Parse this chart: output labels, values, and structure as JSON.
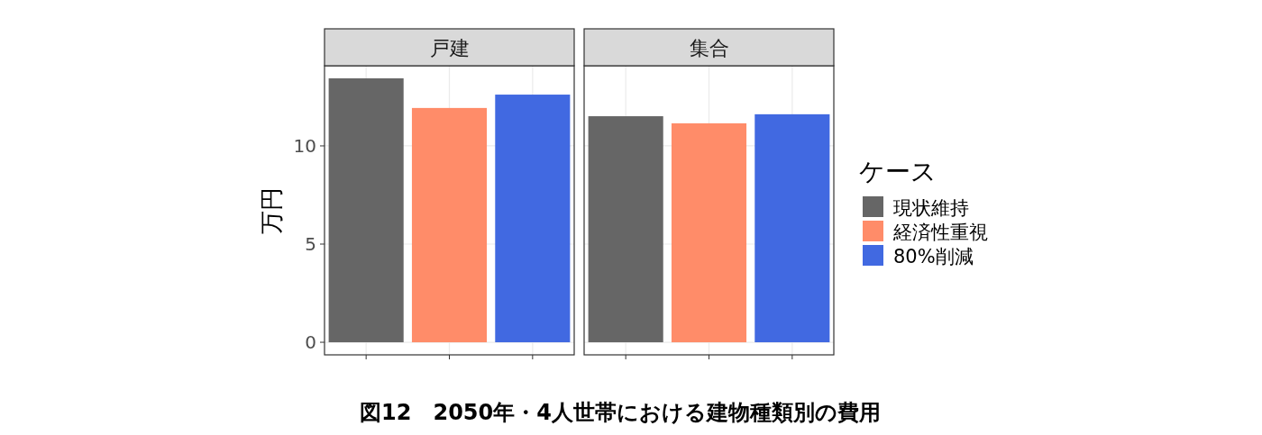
{
  "chart_data": {
    "type": "bar",
    "ylabel": "万円",
    "categories": [
      "戸建",
      "集合"
    ],
    "series": [
      {
        "name": "現状維持",
        "color": "#666666",
        "values": [
          13.44,
          11.51
        ]
      },
      {
        "name": "経済性重視",
        "color": "#ff8c69",
        "values": [
          11.93,
          11.15
        ]
      },
      {
        "name": "80%削減",
        "color": "#4169e1",
        "values": [
          12.61,
          11.61
        ]
      }
    ],
    "ylim": [
      -0.64,
      14.08
    ],
    "yticks": [
      0,
      5,
      10
    ],
    "grid": true,
    "legend": "right",
    "legend_title": "ケース",
    "annotations": [
      "図12　2050年・4人世帯における建物種類別の費用"
    ]
  }
}
